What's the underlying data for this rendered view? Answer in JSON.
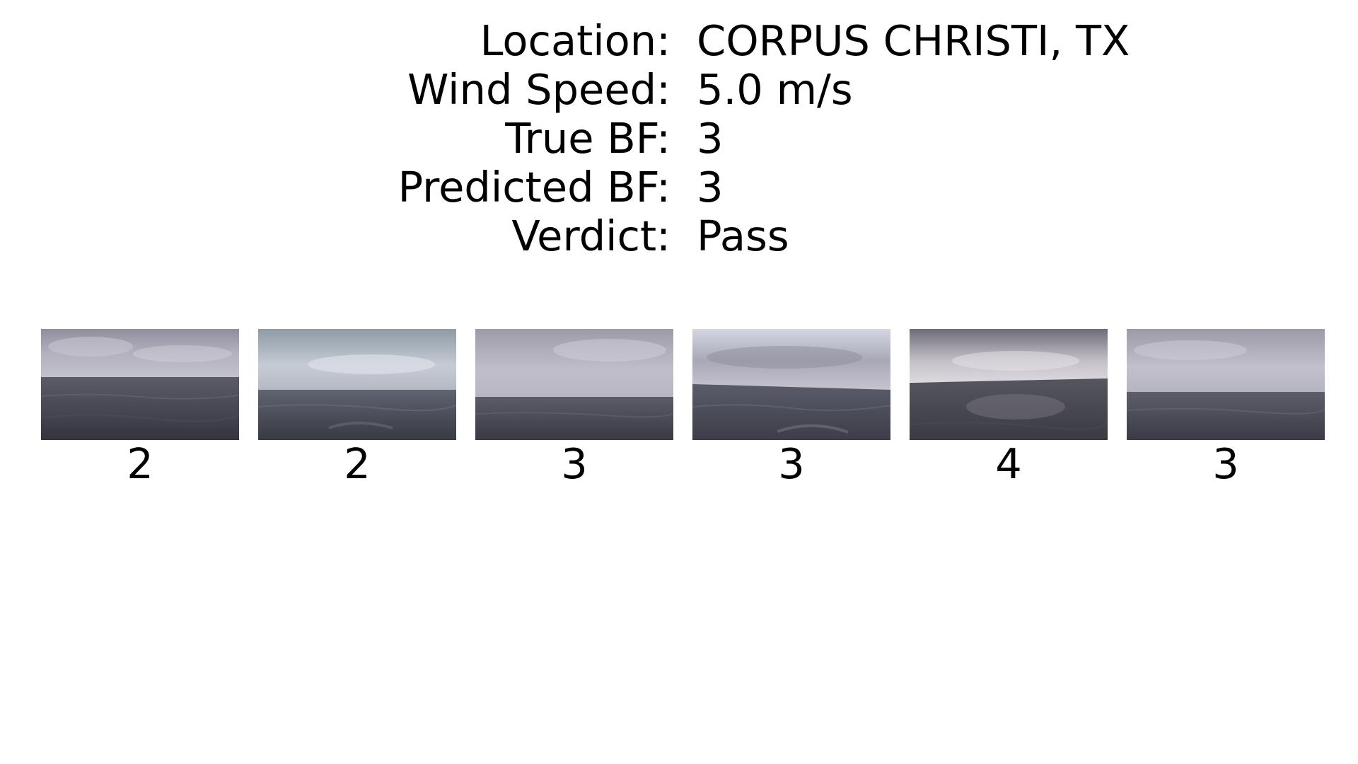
{
  "info": {
    "location_label": "Location:",
    "location_value": "CORPUS CHRISTI, TX",
    "wind_label": "Wind Speed:",
    "wind_value": "5.0 m/s",
    "true_bf_label": "True BF:",
    "true_bf_value": "3",
    "predicted_bf_label": "Predicted BF:",
    "predicted_bf_value": "3",
    "verdict_label": "Verdict:",
    "verdict_value": "Pass"
  },
  "frames": [
    {
      "label": "2"
    },
    {
      "label": "2"
    },
    {
      "label": "3"
    },
    {
      "label": "3"
    },
    {
      "label": "4"
    },
    {
      "label": "3"
    }
  ]
}
